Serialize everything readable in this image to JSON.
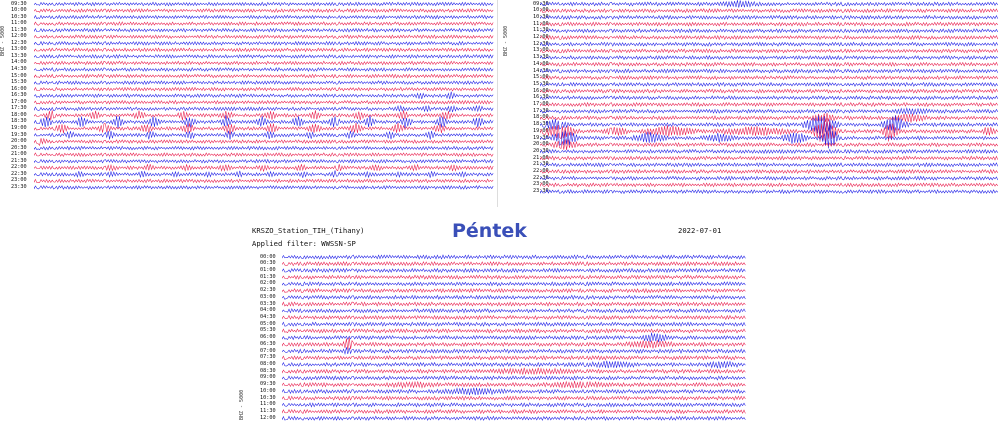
{
  "panels": {
    "left": {
      "axis_label": "BHZ - 5000",
      "times": [
        "09:30",
        "10:00",
        "10:30",
        "11:00",
        "11:30",
        "12:00",
        "12:30",
        "13:00",
        "13:30",
        "14:00",
        "14:30",
        "15:00",
        "15:30",
        "16:00",
        "16:30",
        "17:00",
        "17:30",
        "18:00",
        "18:30",
        "19:00",
        "19:30",
        "20:00",
        "20:30",
        "21:00",
        "21:30",
        "22:00",
        "22:30",
        "23:00",
        "23:30"
      ]
    },
    "right": {
      "axis_label": "BHZ - 5000",
      "times": [
        "09:30",
        "10:00",
        "10:30",
        "11:00",
        "11:30",
        "12:00",
        "12:30",
        "13:00",
        "13:30",
        "14:00",
        "14:30",
        "15:00",
        "15:30",
        "16:00",
        "16:30",
        "17:00",
        "17:30",
        "18:00",
        "18:30",
        "19:00",
        "19:30",
        "20:00",
        "20:30",
        "21:00",
        "21:30",
        "22:00",
        "22:30",
        "23:00",
        "23:30"
      ]
    },
    "bottom": {
      "station": "KRSZO_Station_TIH_(Tihany)",
      "filter": "Applied filter: WWSSN-SP",
      "day": "Péntek",
      "date": "2022-07-01",
      "axis_label": "BHZ - 5000",
      "times": [
        "00:00",
        "00:30",
        "01:00",
        "01:30",
        "02:00",
        "02:30",
        "03:00",
        "03:30",
        "04:00",
        "04:30",
        "05:00",
        "05:30",
        "06:00",
        "06:30",
        "07:00",
        "07:30",
        "08:00",
        "08:30",
        "09:00",
        "09:30",
        "10:00",
        "10:30",
        "11:00",
        "11:30",
        "12:00"
      ]
    }
  },
  "colors": {
    "trace_a": "#1a1ae6",
    "trace_b": "#e8194a",
    "day_title": "#3a4fb8"
  }
}
